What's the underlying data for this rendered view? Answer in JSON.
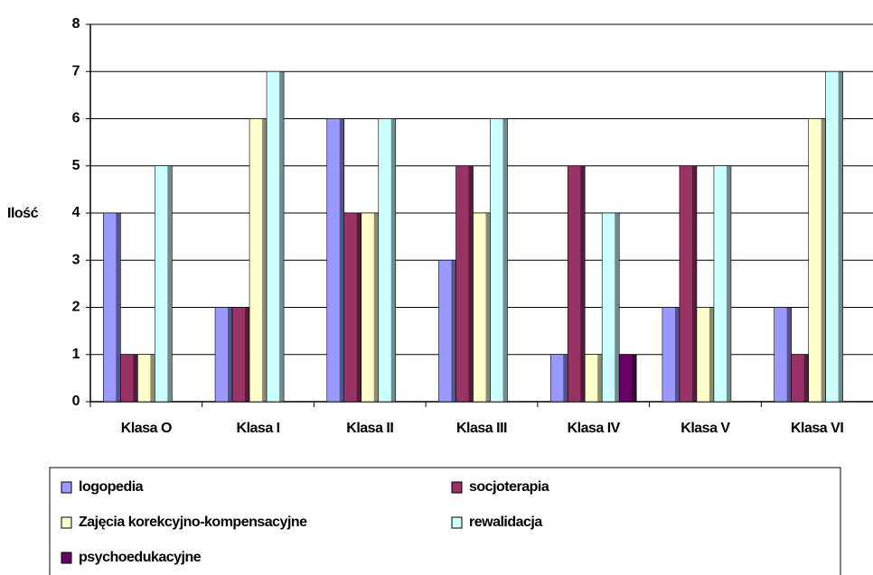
{
  "chart_data": {
    "type": "bar",
    "y_label": "Ilość",
    "categories": [
      "Klasa O",
      "Klasa I",
      "Klasa II",
      "Klasa III",
      "Klasa IV",
      "Klasa V",
      "Klasa VI"
    ],
    "series": [
      {
        "name": "logopedia",
        "color": "#9999ff",
        "values": [
          4,
          2,
          6,
          3,
          1,
          2,
          2
        ]
      },
      {
        "name": "socjoterapia",
        "color": "#993366",
        "values": [
          1,
          2,
          4,
          5,
          5,
          5,
          1
        ]
      },
      {
        "name": "Zajęcia korekcyjno-kompensacyjne",
        "color": "#ffffcc",
        "values": [
          1,
          6,
          4,
          4,
          1,
          2,
          6
        ]
      },
      {
        "name": "rewalidacja",
        "color": "#ccffff",
        "values": [
          5,
          7,
          6,
          6,
          4,
          5,
          7
        ]
      },
      {
        "name": "psychoedukacyjne",
        "color": "#660066",
        "values": [
          0,
          0,
          0,
          0,
          1,
          0,
          0
        ]
      }
    ],
    "ylim": [
      0,
      8
    ],
    "yticks": [
      0,
      1,
      2,
      3,
      4,
      5,
      6,
      7,
      8
    ],
    "grid": true,
    "legend": "bottom"
  }
}
